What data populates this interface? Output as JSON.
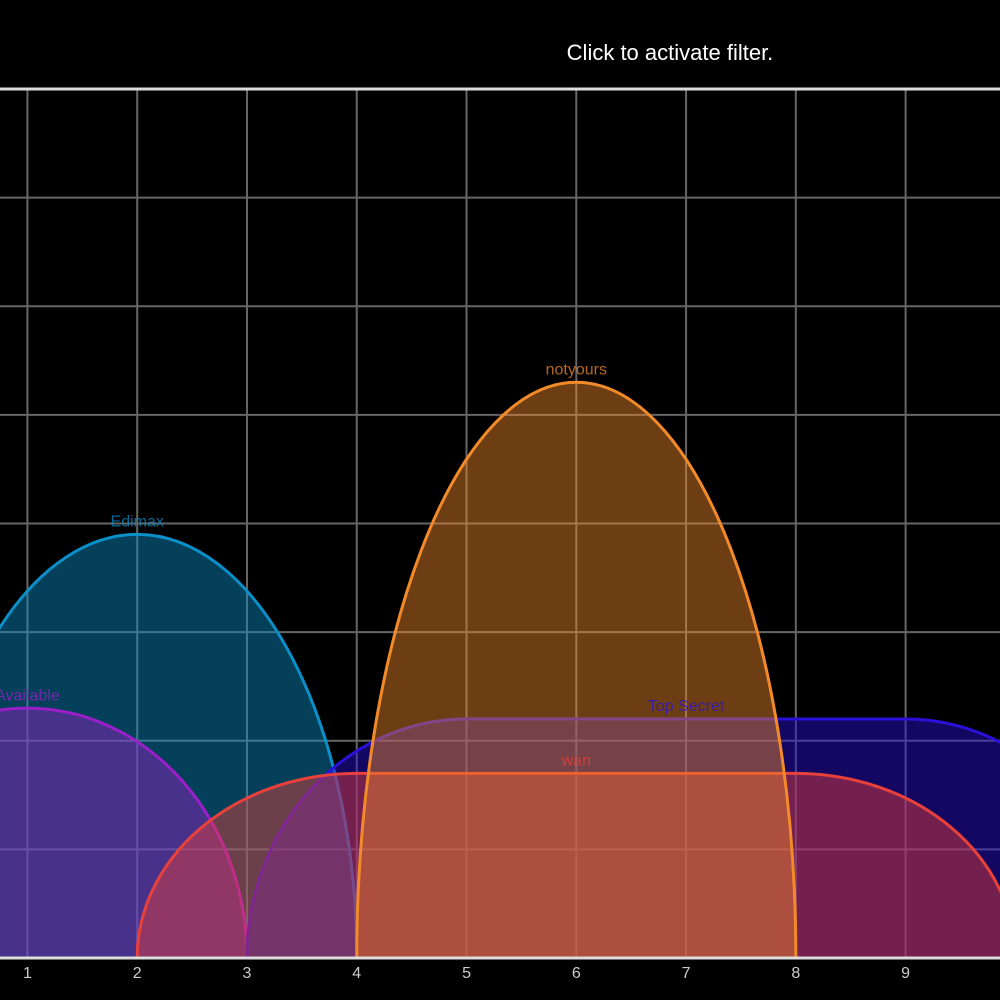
{
  "header": {
    "hint": "Click to activate filter."
  },
  "chart_data": {
    "type": "channel",
    "xlim": [
      0.75,
      9.86
    ],
    "xticks": [
      1,
      2,
      3,
      4,
      5,
      6,
      7,
      8,
      9
    ],
    "ylim": [
      -100,
      -20
    ],
    "yticks": [
      -100,
      -90,
      -80,
      -70,
      -60,
      -50,
      -40,
      -30,
      -20
    ],
    "grid": true,
    "networks": [
      {
        "name": "Edimax",
        "color": "#0a8fc8",
        "channel": 2,
        "width_mhz": 20,
        "signal": -61
      },
      {
        "name": "Available",
        "color": "#9b1fc8",
        "channel": 1,
        "width_mhz": 20,
        "signal": -77
      },
      {
        "name": "Top Secret",
        "color": "#2a10d8",
        "channel": 7,
        "width_mhz": 40,
        "signal": -78
      },
      {
        "name": "wan",
        "color": "#e8403a",
        "channel": 6,
        "width_mhz": 40,
        "signal": -83
      },
      {
        "name": "notyours",
        "color": "#f28a2a",
        "channel": 6,
        "width_mhz": 20,
        "signal": -47
      }
    ]
  }
}
